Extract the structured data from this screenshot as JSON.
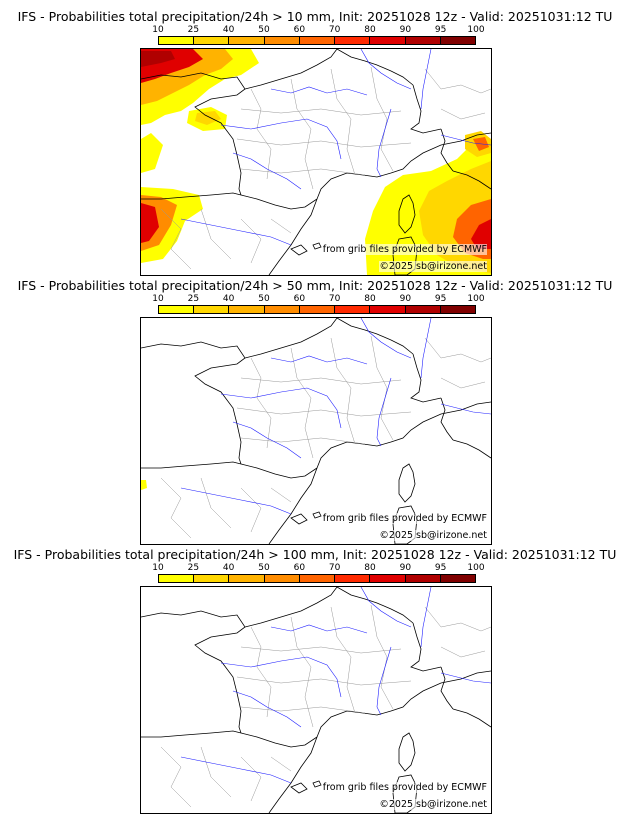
{
  "colors": {
    "scale": [
      "#ffff00",
      "#ffd700",
      "#ffb300",
      "#ff8c00",
      "#ff6400",
      "#ff2a00",
      "#e00000",
      "#b00000",
      "#800000"
    ],
    "country_border": "#000000",
    "admin_border": "#999999",
    "river": "#2020ff"
  },
  "colorbar_ticks": [
    "10",
    "25",
    "40",
    "50",
    "60",
    "70",
    "80",
    "90",
    "95",
    "100"
  ],
  "panels": [
    {
      "title": "IFS - Probabilities total precipitation/24h > 10 mm, Init: 20251028 12z - Valid: 20251031:12 TU",
      "credit_source": "from grib files provided by ECMWF",
      "credit_copyright": "©2025 sb@irizone.net",
      "precip_areas": [
        "brittany-north",
        "bay-of-biscay",
        "cantabria",
        "ligurian-sea",
        "corsica-sardinia"
      ]
    },
    {
      "title": "IFS - Probabilities total precipitation/24h > 50 mm, Init: 20251028 12z - Valid: 20251031:12 TU",
      "credit_source": "from grib files provided by ECMWF",
      "credit_copyright": "©2025 sb@irizone.net",
      "precip_areas": [
        "cantabria"
      ]
    },
    {
      "title": "IFS - Probabilities total precipitation/24h > 100 mm, Init: 20251028 12z - Valid: 20251031:12 TU",
      "credit_source": "from grib files provided by ECMWF",
      "credit_copyright": "©2025 sb@irizone.net",
      "precip_areas": []
    }
  ]
}
